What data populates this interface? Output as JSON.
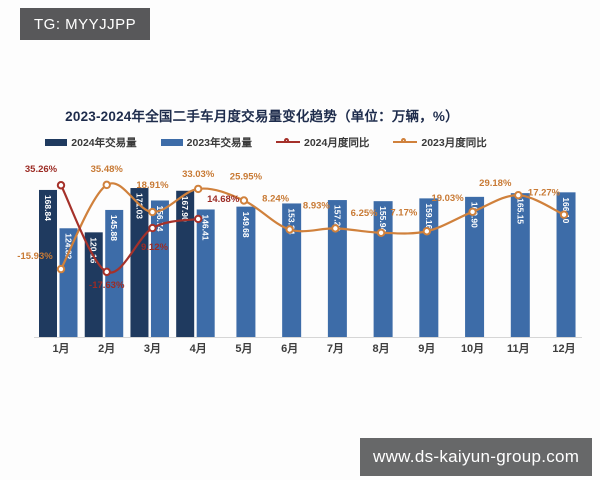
{
  "watermarks": {
    "top_left": "TG: MYYJJPP",
    "bottom_right": "www.ds-kaiyun-group.com"
  },
  "chart": {
    "title": "2023-2024年全国二手车月度交易量变化趋势（单位：万辆，%）",
    "legend": [
      {
        "label": "2024年交易量",
        "type": "bar",
        "color": "#1F3A5F"
      },
      {
        "label": "2023年交易量",
        "type": "bar",
        "color": "#3D6CA8"
      },
      {
        "label": "2024月度同比",
        "type": "line",
        "color": "#A5312A"
      },
      {
        "label": "2023月度同比",
        "type": "line",
        "color": "#D0813C"
      }
    ]
  },
  "chart_data": {
    "type": "combo bar+line",
    "title": "2023-2024年全国二手车月度交易量变化趋势（单位：万辆，%）",
    "categories": [
      "1月",
      "2月",
      "3月",
      "4月",
      "5月",
      "6月",
      "7月",
      "8月",
      "9月",
      "10月",
      "11月",
      "12月"
    ],
    "bar_series": [
      {
        "name": "2024年交易量",
        "color": "#1F3A5F",
        "unit": "万辆",
        "values": [
          168.84,
          120.16,
          171.03,
          167.9,
          null,
          null,
          null,
          null,
          null,
          null,
          null,
          null
        ]
      },
      {
        "name": "2023年交易量",
        "color": "#3D6CA8",
        "unit": "万辆",
        "values": [
          124.82,
          145.88,
          156.74,
          146.41,
          149.68,
          153.34,
          157.22,
          155.94,
          159.16,
          160.9,
          165.15,
          166.1
        ]
      }
    ],
    "line_series": [
      {
        "name": "2024月度同比",
        "color": "#A5312A",
        "label_color": "#9C2B24",
        "unit": "%",
        "values": [
          35.26,
          -17.63,
          9.12,
          14.68,
          null,
          null,
          null,
          null,
          null,
          null,
          null,
          null
        ]
      },
      {
        "name": "2023月度同比",
        "color": "#D0813C",
        "label_color": "#C87A35",
        "unit": "%",
        "values": [
          -15.93,
          35.48,
          18.91,
          33.03,
          25.95,
          8.24,
          8.93,
          6.25,
          7.17,
          19.03,
          29.18,
          17.27
        ]
      }
    ],
    "bar_axis": {
      "min": 0,
      "implied_max": 180
    },
    "line_axis": {
      "min": -20,
      "max": 40
    },
    "gridlines": false,
    "legend_position": "top",
    "bar_label_color": "#FFFFFF",
    "x_label_color": "#3D3D3D"
  }
}
